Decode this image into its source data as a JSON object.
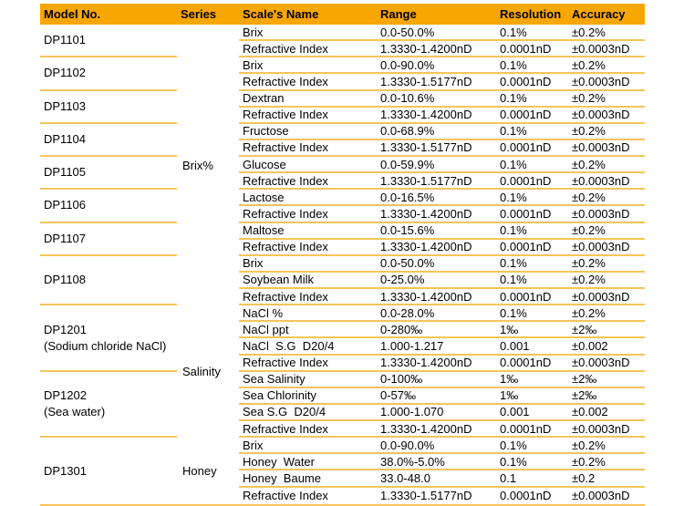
{
  "table": {
    "colors": {
      "header_bg": "#f8a602",
      "divider": "#f4c55a",
      "text": "#000000"
    },
    "headers": [
      "Model No.",
      "Series",
      "Scale's Name",
      "Range",
      "Resolution",
      "Accuracy"
    ],
    "sections": [
      {
        "series": "Brix%",
        "models": [
          {
            "model": "DP1101",
            "note": "",
            "scales": [
              {
                "name": "Brix",
                "range": "0.0-50.0%",
                "resolution": "0.1%",
                "accuracy": "±0.2%"
              },
              {
                "name": "Refractive Index",
                "range": "1.3330-1.4200nD",
                "resolution": "0.0001nD",
                "accuracy": "±0.0003nD"
              }
            ]
          },
          {
            "model": "DP1102",
            "note": "",
            "scales": [
              {
                "name": "Brix",
                "range": "0.0-90.0%",
                "resolution": "0.1%",
                "accuracy": "±0.2%"
              },
              {
                "name": "Refractive Index",
                "range": "1.3330-1.5177nD",
                "resolution": "0.0001nD",
                "accuracy": "±0.0003nD"
              }
            ]
          },
          {
            "model": "DP1103",
            "note": "",
            "scales": [
              {
                "name": "Dextran",
                "range": "0.0-10.6%",
                "resolution": "0.1%",
                "accuracy": "±0.2%"
              },
              {
                "name": "Refractive Index",
                "range": "1.3330-1.4200nD",
                "resolution": "0.0001nD",
                "accuracy": "±0.0003nD"
              }
            ]
          },
          {
            "model": "DP1104",
            "note": "",
            "scales": [
              {
                "name": "Fructose",
                "range": "0.0-68.9%",
                "resolution": "0.1%",
                "accuracy": "±0.2%"
              },
              {
                "name": "Refractive Index",
                "range": "1.3330-1.5177nD",
                "resolution": "0.0001nD",
                "accuracy": "±0.0003nD"
              }
            ]
          },
          {
            "model": "DP1105",
            "note": "",
            "scales": [
              {
                "name": "Glucose",
                "range": "0.0-59.9%",
                "resolution": "0.1%",
                "accuracy": "±0.2%"
              },
              {
                "name": "Refractive Index",
                "range": "1.3330-1.5177nD",
                "resolution": "0.0001nD",
                "accuracy": "±0.0003nD"
              }
            ]
          },
          {
            "model": "DP1106",
            "note": "",
            "scales": [
              {
                "name": "Lactose",
                "range": "0.0-16.5%",
                "resolution": "0.1%",
                "accuracy": "±0.2%"
              },
              {
                "name": "Refractive Index",
                "range": "1.3330-1.4200nD",
                "resolution": "0.0001nD",
                "accuracy": "±0.0003nD"
              }
            ]
          },
          {
            "model": "DP1107",
            "note": "",
            "scales": [
              {
                "name": "Maltose",
                "range": "0.0-15.6%",
                "resolution": "0.1%",
                "accuracy": "±0.2%"
              },
              {
                "name": "Refractive Index",
                "range": "1.3330-1.4200nD",
                "resolution": "0.0001nD",
                "accuracy": "±0.0003nD"
              }
            ]
          },
          {
            "model": "DP1108",
            "note": "",
            "scales": [
              {
                "name": "Brix",
                "range": "0.0-50.0%",
                "resolution": "0.1%",
                "accuracy": "±0.2%"
              },
              {
                "name": "Soybean Milk",
                "range": "0-25.0%",
                "resolution": "0.1%",
                "accuracy": "±0.2%"
              },
              {
                "name": "Refractive Index",
                "range": "1.3330-1.4200nD",
                "resolution": "0.0001nD",
                "accuracy": "±0.0003nD"
              }
            ]
          }
        ]
      },
      {
        "series": "Salinity",
        "models": [
          {
            "model": "DP1201",
            "note": "(Sodium chloride NaCl)",
            "scales": [
              {
                "name": "NaCl %",
                "range": "0.0-28.0%",
                "resolution": "0.1%",
                "accuracy": "±0.2%"
              },
              {
                "name": "NaCl ppt",
                "range": "0-280‰",
                "resolution": "1‰",
                "accuracy": "±2‰"
              },
              {
                "name": "NaCl  S.G  D20/4",
                "range": "1.000-1.217",
                "resolution": "0.001",
                "accuracy": "±0.002"
              },
              {
                "name": "Refractive Index",
                "range": "1.3330-1.4200nD",
                "resolution": "0.0001nD",
                "accuracy": "±0.0003nD"
              }
            ]
          },
          {
            "model": "DP1202",
            "note": "(Sea water)",
            "scales": [
              {
                "name": "Sea Salinity",
                "range": "0-100‰",
                "resolution": "1‰",
                "accuracy": "±2‰"
              },
              {
                "name": "Sea Chlorinity",
                "range": "0-57‰",
                "resolution": "1‰",
                "accuracy": "±2‰"
              },
              {
                "name": "Sea S.G  D20/4",
                "range": "1.000-1.070",
                "resolution": "0.001",
                "accuracy": "±0.002"
              },
              {
                "name": "Refractive Index",
                "range": "1.3330-1.4200nD",
                "resolution": "0.0001nD",
                "accuracy": "±0.0003nD"
              }
            ]
          }
        ]
      },
      {
        "series": "Honey",
        "models": [
          {
            "model": "DP1301",
            "note": "",
            "scales": [
              {
                "name": "Brix",
                "range": "0.0-90.0%",
                "resolution": "0.1%",
                "accuracy": "±0.2%"
              },
              {
                "name": "Honey  Water",
                "range": "38.0%-5.0%",
                "resolution": "0.1%",
                "accuracy": "±0.2%"
              },
              {
                "name": "Honey  Baume",
                "range": "33.0-48.0",
                "resolution": "0.1",
                "accuracy": "±0.2"
              },
              {
                "name": "Refractive Index",
                "range": "1.3330-1.5177nD",
                "resolution": "0.0001nD",
                "accuracy": "±0.0003nD"
              }
            ]
          }
        ]
      }
    ]
  }
}
